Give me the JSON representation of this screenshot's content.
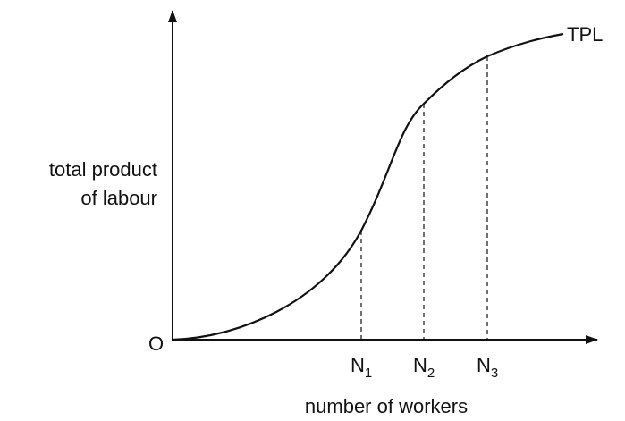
{
  "curve_label": "TPL",
  "y_axis_label": [
    "total product",
    "of labour"
  ],
  "origin_label": "O",
  "x_markers": [
    {
      "letter": "N",
      "subscript": "1"
    },
    {
      "letter": "N",
      "subscript": "2"
    },
    {
      "letter": "N",
      "subscript": "3"
    }
  ],
  "x_axis_label": "number of workers"
}
